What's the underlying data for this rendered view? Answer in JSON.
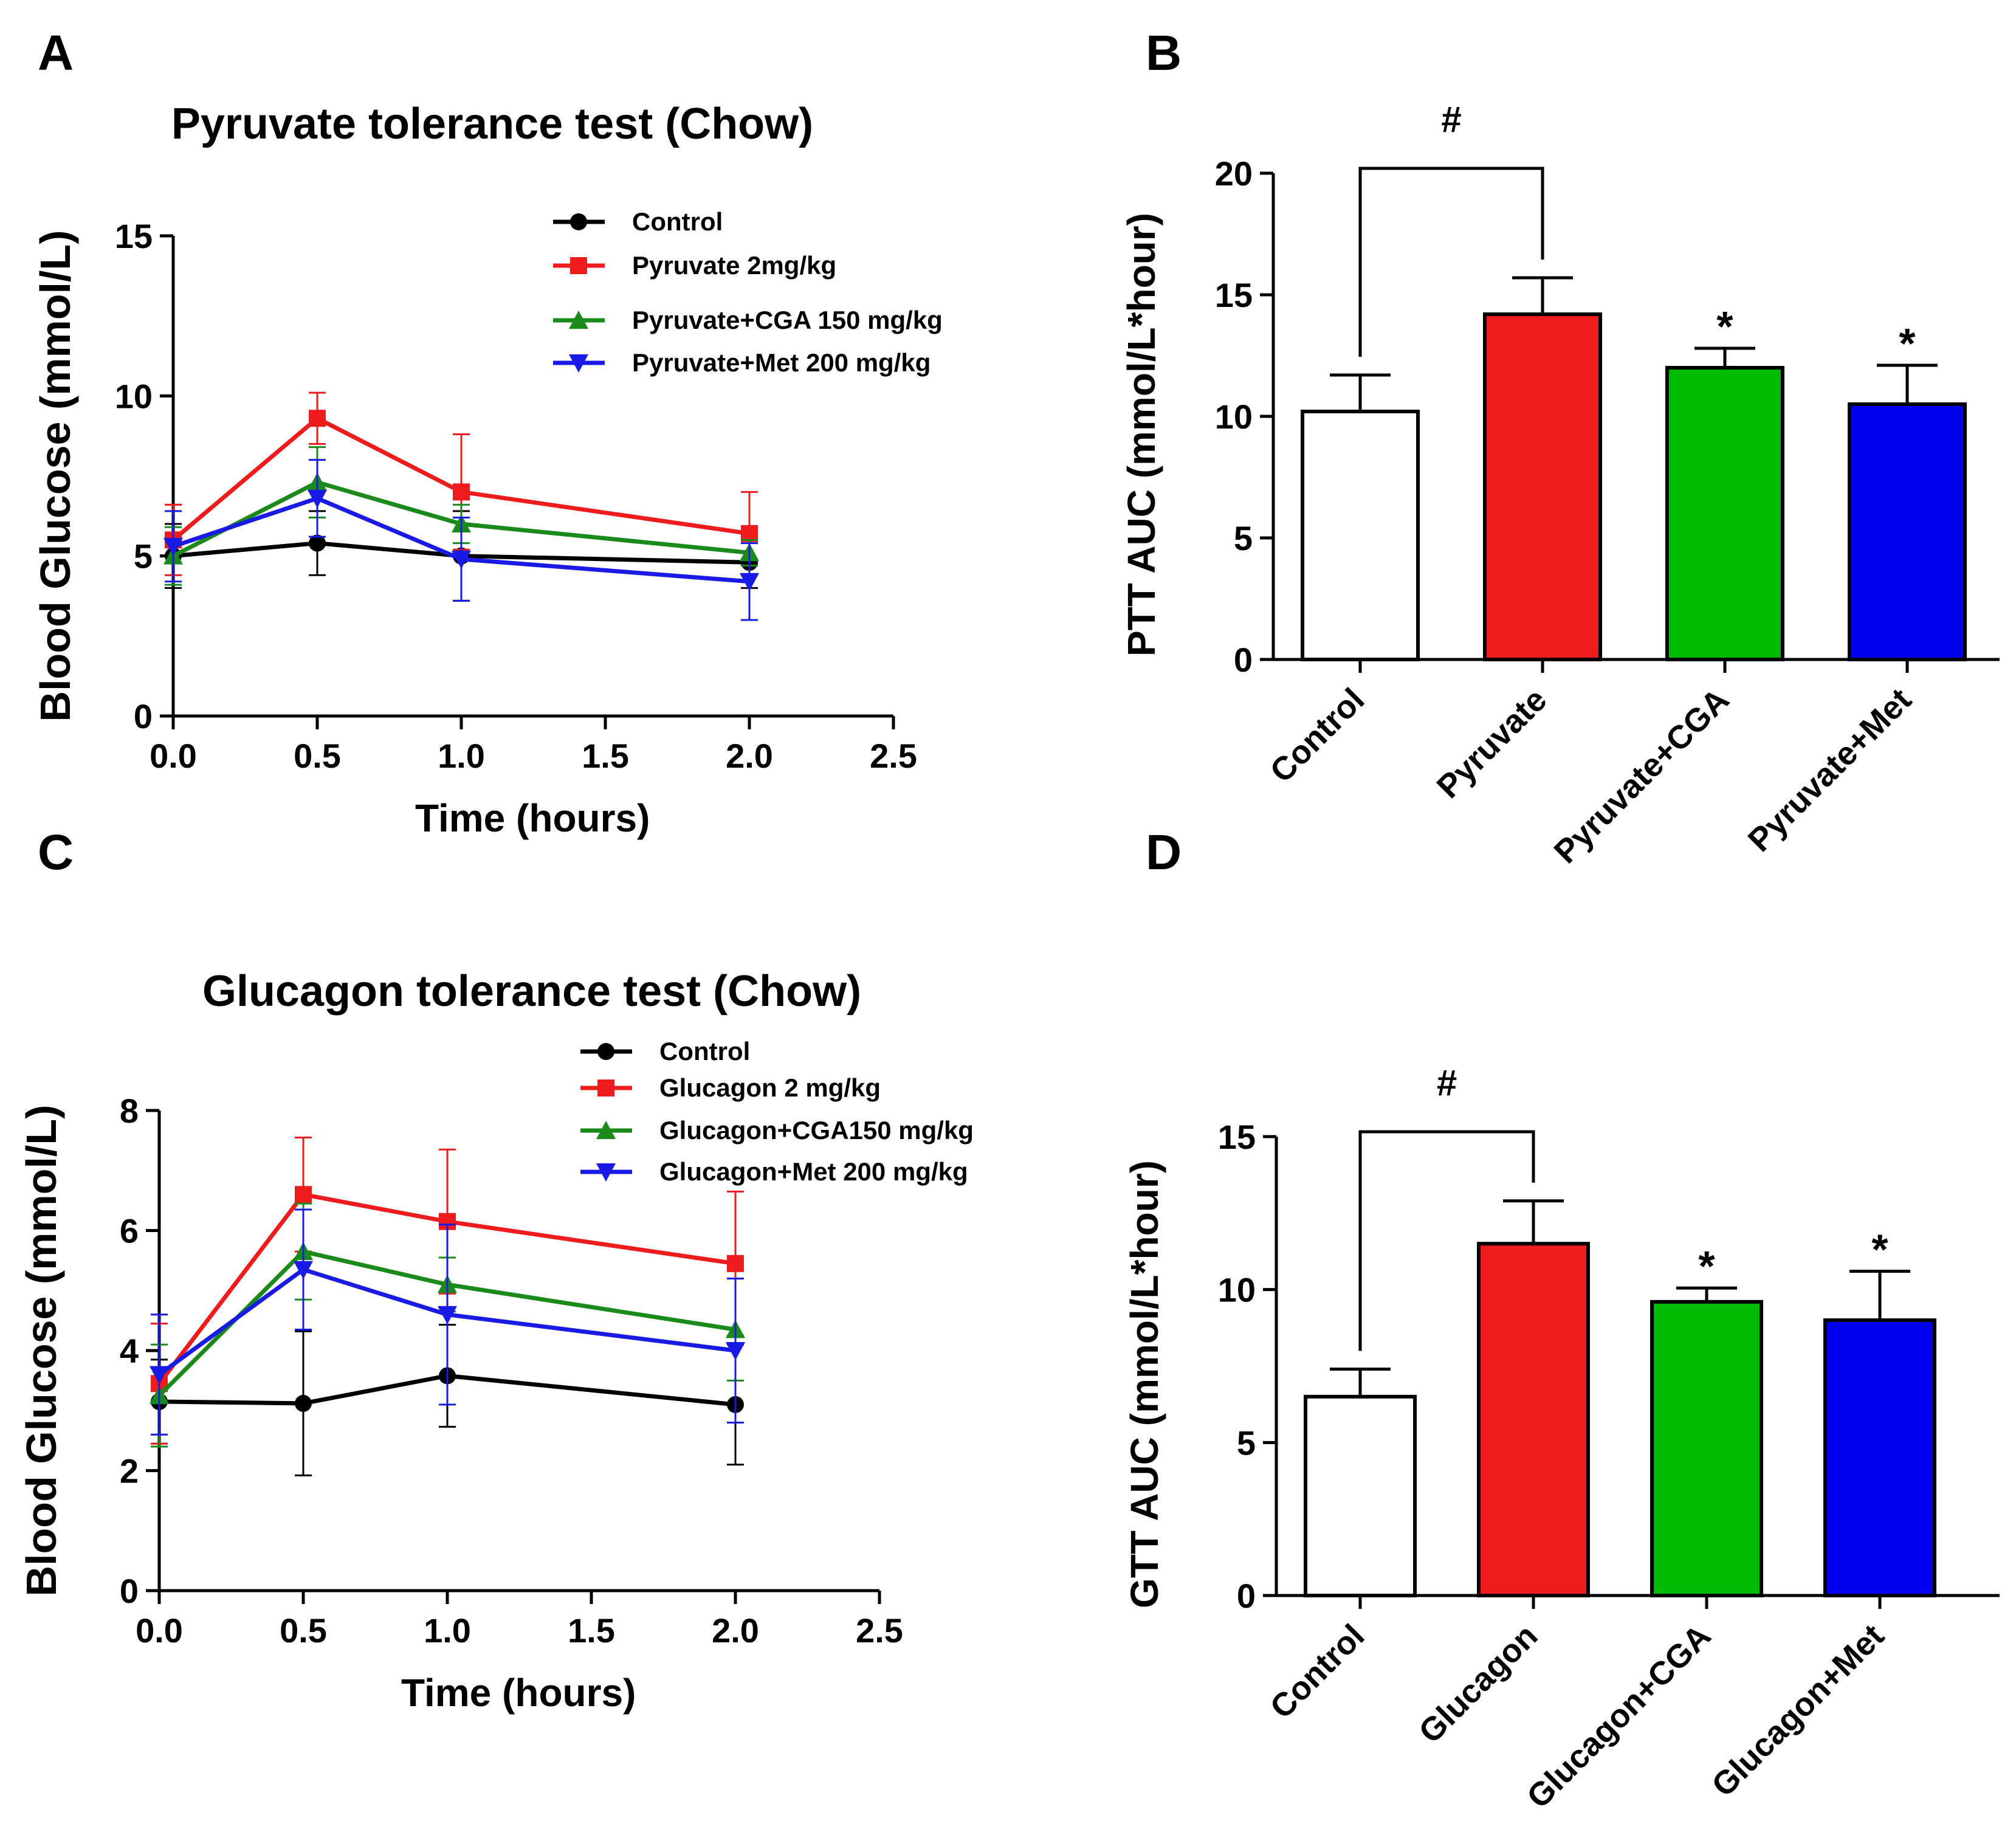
{
  "colors": {
    "control": "#000000",
    "red": "#ee1c1c",
    "green": "#1a8a1a",
    "blue": "#1a1ae6",
    "bar_green": "#00bb00",
    "bar_blue": "#0000ee",
    "axis": "#000000"
  },
  "panels": {
    "A": {
      "letter": "A"
    },
    "B": {
      "letter": "B"
    },
    "C": {
      "letter": "C"
    },
    "D": {
      "letter": "D"
    }
  },
  "chart_data": [
    {
      "id": "A",
      "type": "line",
      "title": "Pyruvate  tolerance  test  (Chow)",
      "xlabel": "Time (hours)",
      "ylabel": "Blood Glucose (mmol/L)",
      "xlim": [
        0,
        2.5
      ],
      "ylim": [
        0,
        15
      ],
      "xticks": [
        0,
        0.5,
        1,
        1.5,
        2,
        2.5
      ],
      "xtick_labels": [
        "0.0",
        "0.5",
        "1.0",
        "1.5",
        "2.0",
        "2.5"
      ],
      "yticks": [
        0,
        5,
        10,
        15
      ],
      "ytick_labels": [
        "0",
        "5",
        "10",
        "15"
      ],
      "x": [
        0,
        0.5,
        1,
        2
      ],
      "series": [
        {
          "name": "Control",
          "marker": "circle",
          "color": "#000000",
          "values": [
            5.0,
            5.4,
            5.0,
            4.8
          ],
          "errors": [
            1.0,
            1.0,
            1.4,
            0.8
          ]
        },
        {
          "name": "Pyruvate 2mg/kg",
          "marker": "square",
          "color": "#ee1c1c",
          "values": [
            5.5,
            9.3,
            7.0,
            5.7
          ],
          "errors": [
            1.1,
            0.8,
            1.8,
            1.3
          ]
        },
        {
          "name": "Pyruvate+CGA 150 mg/kg",
          "marker": "triangle-up",
          "color": "#1a8a1a",
          "values": [
            5.0,
            7.3,
            6.0,
            5.1
          ],
          "errors": [
            0.9,
            1.1,
            0.6,
            0.4
          ]
        },
        {
          "name": "Pyruvate+Met 200 mg/kg",
          "marker": "triangle-down",
          "color": "#1a1ae6",
          "values": [
            5.3,
            6.8,
            4.9,
            4.2
          ],
          "errors": [
            1.1,
            1.2,
            1.3,
            1.2
          ]
        }
      ]
    },
    {
      "id": "B",
      "type": "bar",
      "ylabel": "PTT AUC (mmol/L*hour)",
      "ylim": [
        0,
        20
      ],
      "yticks": [
        0,
        5,
        10,
        15,
        20
      ],
      "ytick_labels": [
        "0",
        "5",
        "10",
        "15",
        "20"
      ],
      "categories": [
        "Control",
        "Pyruvate",
        "Pyruvate+CGA",
        "Pyruvate+Met"
      ],
      "values": [
        10.2,
        14.2,
        12.0,
        10.5
      ],
      "errors": [
        1.5,
        1.5,
        0.8,
        1.6
      ],
      "bar_colors": [
        "#ffffff",
        "#ee1c1c",
        "#00bb00",
        "#0000ee"
      ],
      "significance": [
        "",
        "",
        "*",
        "*"
      ],
      "bracket_label": "#"
    },
    {
      "id": "C",
      "type": "line",
      "title": "Glucagon  tolerance  test (Chow)",
      "xlabel": "Time (hours)",
      "ylabel": "Blood Glucose (mmol/L)",
      "xlim": [
        0,
        2.5
      ],
      "ylim": [
        0,
        8
      ],
      "xticks": [
        0,
        0.5,
        1,
        1.5,
        2,
        2.5
      ],
      "xtick_labels": [
        "0.0",
        "0.5",
        "1.0",
        "1.5",
        "2.0",
        "2.5"
      ],
      "yticks": [
        0,
        2,
        4,
        6,
        8
      ],
      "ytick_labels": [
        "0",
        "2",
        "4",
        "6",
        "8"
      ],
      "x": [
        0,
        0.5,
        1,
        2
      ],
      "series": [
        {
          "name": "Control",
          "marker": "circle",
          "color": "#000000",
          "values": [
            3.15,
            3.12,
            3.58,
            3.1
          ],
          "errors": [
            0.7,
            1.2,
            0.85,
            1.0
          ]
        },
        {
          "name": "Glucagon 2 mg/kg",
          "marker": "square",
          "color": "#ee1c1c",
          "values": [
            3.45,
            6.6,
            6.15,
            5.45
          ],
          "errors": [
            1.0,
            0.95,
            1.2,
            1.2
          ]
        },
        {
          "name": "Glucagon+CGA150 mg/kg",
          "marker": "triangle-up",
          "color": "#1a8a1a",
          "values": [
            3.25,
            5.65,
            5.1,
            4.35
          ],
          "errors": [
            0.85,
            0.8,
            0.45,
            0.85
          ]
        },
        {
          "name": "Glucagon+Met 200 mg/kg",
          "marker": "triangle-down",
          "color": "#1a1ae6",
          "values": [
            3.6,
            5.35,
            4.6,
            4.0
          ],
          "errors": [
            1.0,
            1.0,
            1.5,
            1.2
          ]
        }
      ]
    },
    {
      "id": "D",
      "type": "bar",
      "ylabel": "GTT AUC (mmol/L*hour)",
      "ylim": [
        0,
        15
      ],
      "yticks": [
        0,
        5,
        10,
        15
      ],
      "ytick_labels": [
        "0",
        "5",
        "10",
        "15"
      ],
      "categories": [
        "Control",
        "Glucagon",
        "Glucagon+CGA",
        "Glucagon+Met"
      ],
      "values": [
        6.5,
        11.5,
        9.6,
        9.0
      ],
      "errors": [
        0.9,
        1.4,
        0.45,
        1.6
      ],
      "bar_colors": [
        "#ffffff",
        "#ee1c1c",
        "#00bb00",
        "#0000ee"
      ],
      "significance": [
        "",
        "",
        "*",
        "*"
      ],
      "bracket_label": "#"
    }
  ]
}
